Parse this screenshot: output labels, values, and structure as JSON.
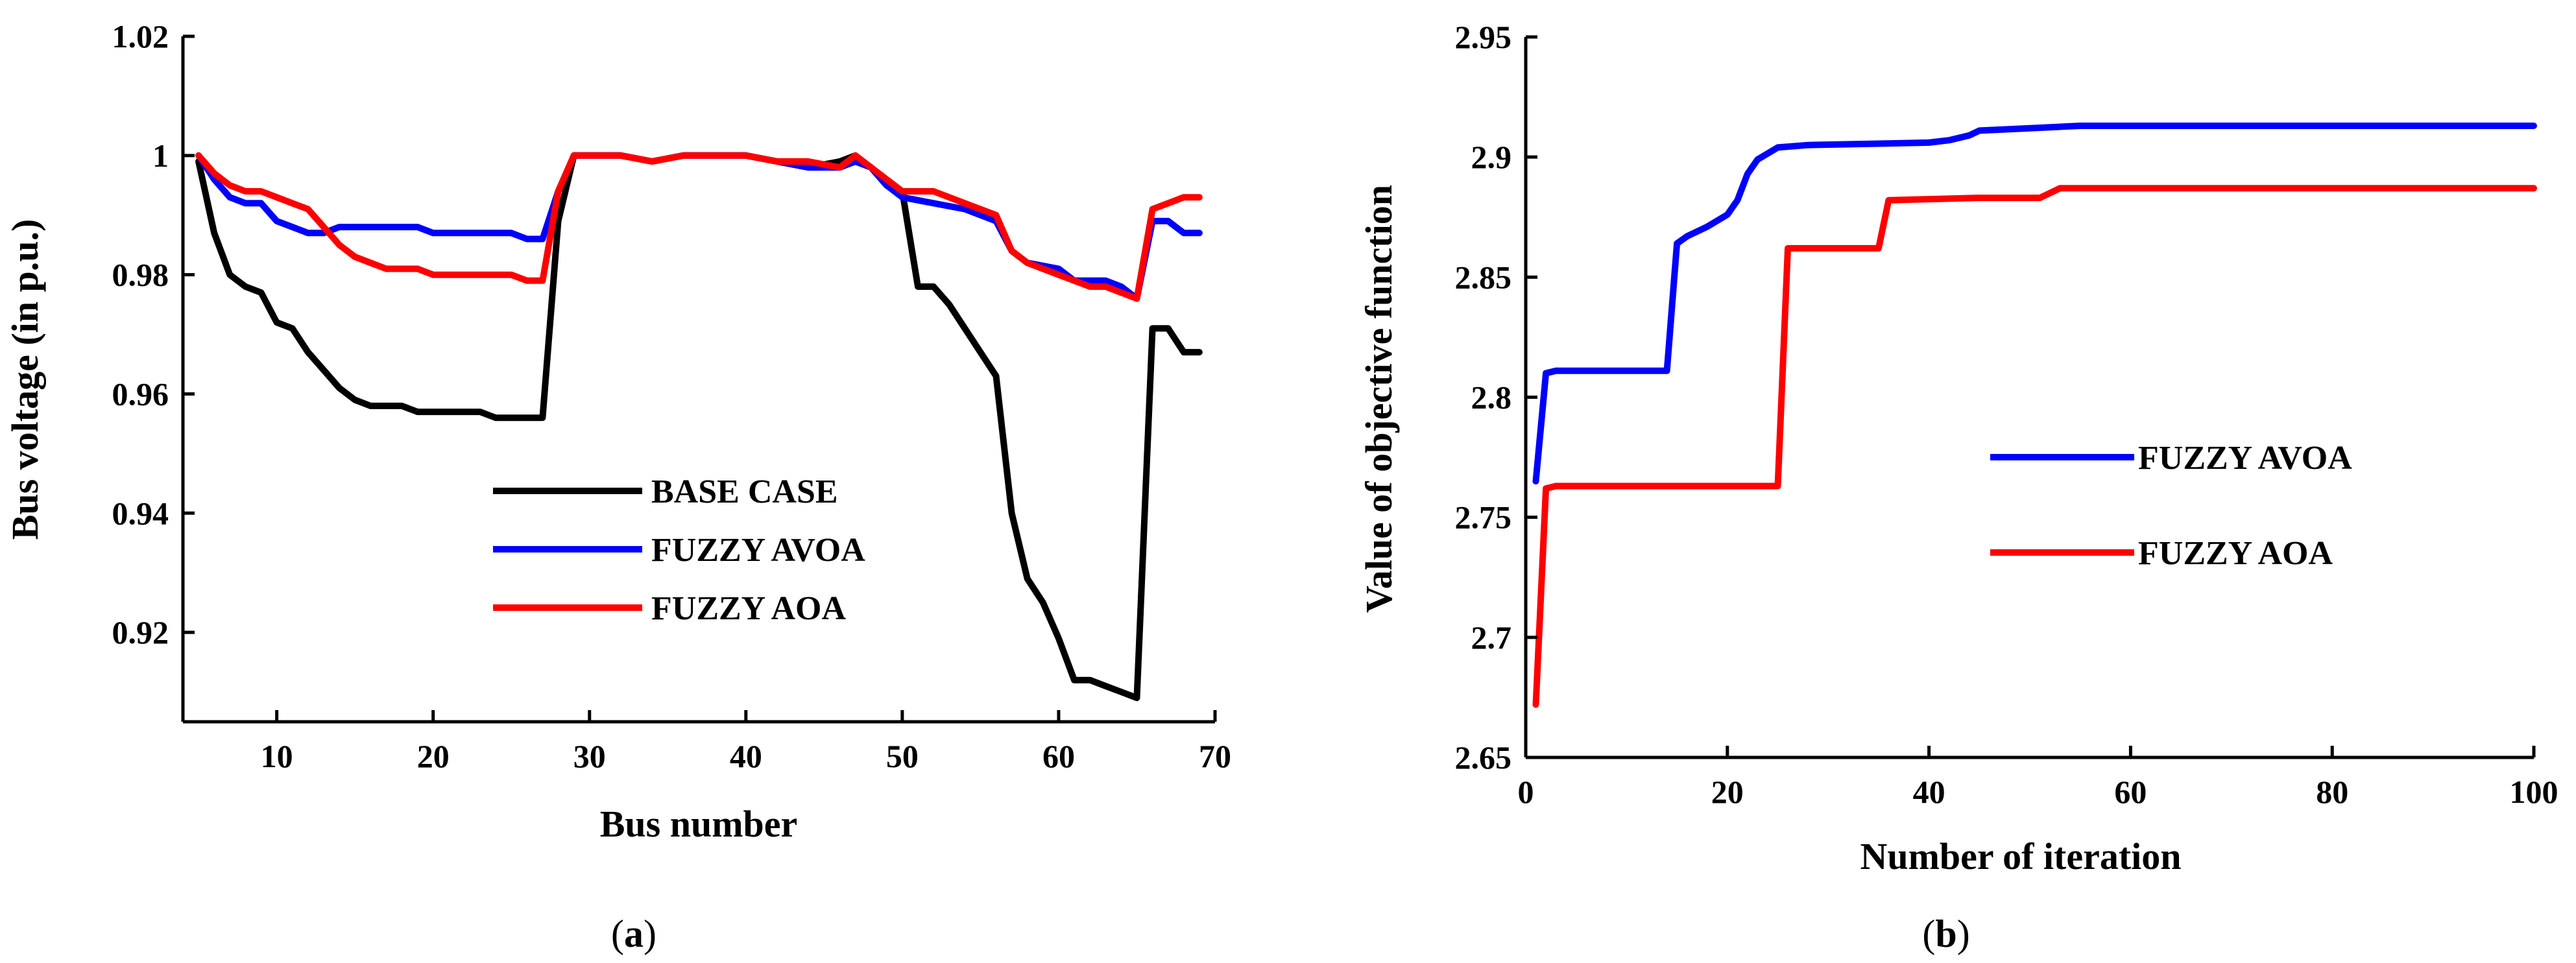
{
  "chart_data": [
    {
      "type": "line",
      "panel_label": "a",
      "title": "",
      "xlabel": "Bus number",
      "ylabel": "Bus voltage (in p.u.)",
      "xlim": [
        4,
        70
      ],
      "ylim": [
        0.905,
        1.02
      ],
      "xticks": [
        10,
        20,
        30,
        40,
        50,
        60,
        70
      ],
      "yticks": [
        0.92,
        0.94,
        0.96,
        0.98,
        1,
        1.02
      ],
      "ytick_labels": [
        "0.92",
        "0.94",
        "0.96",
        "0.98",
        "1",
        "1.02"
      ],
      "legend_position": "center",
      "series": [
        {
          "name": "BASE CASE",
          "color": "#000000",
          "x": [
            5,
            6,
            7,
            8,
            9,
            10,
            11,
            12,
            13,
            14,
            15,
            16,
            17,
            18,
            19,
            20,
            21,
            22,
            23,
            24,
            25,
            26,
            27,
            28,
            29,
            30,
            32,
            34,
            36,
            38,
            40,
            42,
            44,
            46,
            47,
            48,
            49,
            50,
            51,
            52,
            53,
            54,
            55,
            56,
            57,
            58,
            59,
            60,
            61,
            62,
            63,
            64,
            65,
            66,
            67,
            68,
            69
          ],
          "values": [
            0.999,
            0.987,
            0.98,
            0.978,
            0.977,
            0.972,
            0.971,
            0.967,
            0.964,
            0.961,
            0.959,
            0.958,
            0.958,
            0.958,
            0.957,
            0.957,
            0.957,
            0.957,
            0.957,
            0.956,
            0.956,
            0.956,
            0.956,
            0.989,
            1.0,
            1.0,
            1.0,
            0.999,
            1.0,
            1.0,
            1.0,
            0.999,
            0.998,
            0.999,
            1.0,
            0.998,
            0.995,
            0.994,
            0.978,
            0.978,
            0.975,
            0.971,
            0.967,
            0.963,
            0.94,
            0.929,
            0.925,
            0.919,
            0.912,
            0.912,
            0.911,
            0.91,
            0.909,
            0.971,
            0.971,
            0.967,
            0.967
          ]
        },
        {
          "name": "FUZZY AVOA",
          "color": "#0000ff",
          "x": [
            5,
            6,
            7,
            8,
            9,
            10,
            11,
            12,
            13,
            14,
            15,
            16,
            17,
            18,
            19,
            20,
            21,
            22,
            23,
            24,
            25,
            26,
            27,
            28,
            29,
            30,
            32,
            34,
            36,
            38,
            40,
            42,
            44,
            46,
            47,
            48,
            49,
            50,
            52,
            54,
            56,
            57,
            58,
            60,
            61,
            62,
            63,
            64,
            65,
            66,
            67,
            68,
            69
          ],
          "values": [
            1.0,
            0.996,
            0.993,
            0.992,
            0.992,
            0.989,
            0.988,
            0.987,
            0.987,
            0.988,
            0.988,
            0.988,
            0.988,
            0.988,
            0.988,
            0.987,
            0.987,
            0.987,
            0.987,
            0.987,
            0.987,
            0.986,
            0.986,
            0.994,
            1.0,
            1.0,
            1.0,
            0.999,
            1.0,
            1.0,
            1.0,
            0.999,
            0.998,
            0.998,
            0.999,
            0.998,
            0.995,
            0.993,
            0.992,
            0.991,
            0.989,
            0.984,
            0.982,
            0.981,
            0.979,
            0.979,
            0.979,
            0.978,
            0.976,
            0.989,
            0.989,
            0.987,
            0.987
          ]
        },
        {
          "name": "FUZZY AOA",
          "color": "#ff0000",
          "x": [
            5,
            6,
            7,
            8,
            9,
            10,
            11,
            12,
            13,
            14,
            15,
            16,
            17,
            18,
            19,
            20,
            21,
            22,
            23,
            24,
            25,
            26,
            27,
            28,
            29,
            30,
            32,
            34,
            36,
            38,
            40,
            42,
            44,
            46,
            47,
            48,
            49,
            50,
            52,
            54,
            56,
            57,
            58,
            60,
            61,
            62,
            63,
            64,
            65,
            66,
            67,
            68,
            69
          ],
          "values": [
            1.0,
            0.997,
            0.995,
            0.994,
            0.994,
            0.993,
            0.992,
            0.991,
            0.988,
            0.985,
            0.983,
            0.982,
            0.981,
            0.981,
            0.981,
            0.98,
            0.98,
            0.98,
            0.98,
            0.98,
            0.98,
            0.979,
            0.979,
            0.994,
            1.0,
            1.0,
            1.0,
            0.999,
            1.0,
            1.0,
            1.0,
            0.999,
            0.999,
            0.998,
            1.0,
            0.998,
            0.996,
            0.994,
            0.994,
            0.992,
            0.99,
            0.984,
            0.982,
            0.98,
            0.979,
            0.978,
            0.978,
            0.977,
            0.976,
            0.991,
            0.992,
            0.993,
            0.993
          ]
        }
      ]
    },
    {
      "type": "line",
      "panel_label": "b",
      "title": "",
      "xlabel": "Number of iteration",
      "ylabel": "Value of objective function",
      "xlim": [
        0,
        100
      ],
      "ylim": [
        2.65,
        2.95
      ],
      "xticks": [
        0,
        20,
        40,
        60,
        80,
        100
      ],
      "yticks": [
        2.65,
        2.7,
        2.75,
        2.8,
        2.85,
        2.9,
        2.95
      ],
      "ytick_labels": [
        "2.65",
        "2.7",
        "2.75",
        "2.8",
        "2.85",
        "2.9",
        "2.95"
      ],
      "legend_position": "center-right",
      "series": [
        {
          "name": "FUZZY AVOA",
          "color": "#0000ff",
          "x": [
            1,
            2,
            3,
            14,
            15,
            16,
            18,
            20,
            21,
            22,
            23,
            25,
            28,
            40,
            42,
            44,
            45,
            50,
            55,
            60,
            100
          ],
          "values": [
            2.765,
            2.81,
            2.811,
            2.811,
            2.864,
            2.867,
            2.871,
            2.876,
            2.882,
            2.893,
            2.899,
            2.904,
            2.905,
            2.906,
            2.907,
            2.909,
            2.911,
            2.912,
            2.913,
            2.913,
            2.913
          ]
        },
        {
          "name": "FUZZY AOA",
          "color": "#ff0000",
          "x": [
            1,
            2,
            3,
            25,
            26,
            35,
            36,
            45,
            51,
            53,
            100
          ],
          "values": [
            2.672,
            2.762,
            2.763,
            2.763,
            2.862,
            2.862,
            2.882,
            2.883,
            2.883,
            2.887,
            2.887
          ]
        }
      ]
    }
  ],
  "captions": {
    "a": {
      "open": "(",
      "letter": "a",
      "close": ")"
    },
    "b": {
      "open": "(",
      "letter": "b",
      "close": ")"
    }
  }
}
